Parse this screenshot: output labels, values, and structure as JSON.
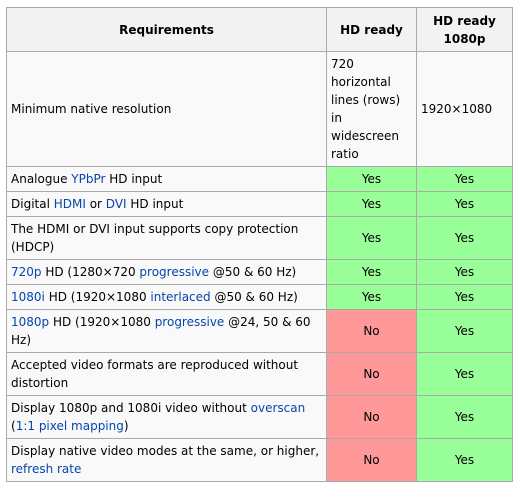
{
  "table": {
    "headers": {
      "requirements": "Requirements",
      "hd_ready": "HD ready",
      "hd_ready_1080p": "HD ready 1080p"
    },
    "rows": [
      {
        "req": [
          {
            "t": "Minimum native resolution"
          }
        ],
        "hd_ready": "720 horizontal lines (rows) in widescreen ratio",
        "hd_ready_1080p": "1920×1080"
      },
      {
        "req": [
          {
            "t": "Analogue "
          },
          {
            "t": "YPbPr",
            "link": true
          },
          {
            "t": " HD input"
          }
        ],
        "hd_ready": "Yes",
        "hd_ready_1080p": "Yes"
      },
      {
        "req": [
          {
            "t": "Digital "
          },
          {
            "t": "HDMI",
            "link": true
          },
          {
            "t": " or "
          },
          {
            "t": "DVI",
            "link": true
          },
          {
            "t": " HD input"
          }
        ],
        "hd_ready": "Yes",
        "hd_ready_1080p": "Yes"
      },
      {
        "req": [
          {
            "t": "The HDMI or DVI input supports copy protection (HDCP)"
          }
        ],
        "hd_ready": "Yes",
        "hd_ready_1080p": "Yes"
      },
      {
        "req": [
          {
            "t": "720p",
            "link": true
          },
          {
            "t": " HD (1280×720 "
          },
          {
            "t": "progressive",
            "link": true
          },
          {
            "t": " @50 & 60 Hz)"
          }
        ],
        "hd_ready": "Yes",
        "hd_ready_1080p": "Yes"
      },
      {
        "req": [
          {
            "t": "1080i",
            "link": true
          },
          {
            "t": " HD (1920×1080 "
          },
          {
            "t": "interlaced",
            "link": true
          },
          {
            "t": " @50 & 60 Hz)"
          }
        ],
        "hd_ready": "Yes",
        "hd_ready_1080p": "Yes"
      },
      {
        "req": [
          {
            "t": "1080p",
            "link": true
          },
          {
            "t": " HD (1920×1080 "
          },
          {
            "t": "progressive",
            "link": true
          },
          {
            "t": " @24, 50 & 60 Hz)"
          }
        ],
        "hd_ready": "No",
        "hd_ready_1080p": "Yes"
      },
      {
        "req": [
          {
            "t": "Accepted video formats are reproduced without distortion"
          }
        ],
        "hd_ready": "No",
        "hd_ready_1080p": "Yes"
      },
      {
        "req": [
          {
            "t": "Display 1080p and 1080i video without "
          },
          {
            "t": "overscan",
            "link": true
          },
          {
            "t": " ("
          },
          {
            "t": "1:1 pixel mapping",
            "link": true
          },
          {
            "t": ")"
          }
        ],
        "hd_ready": "No",
        "hd_ready_1080p": "Yes"
      },
      {
        "req": [
          {
            "t": "Display native video modes at the same, or higher, "
          },
          {
            "t": "refresh rate",
            "link": true
          }
        ],
        "hd_ready": "No",
        "hd_ready_1080p": "Yes"
      }
    ]
  },
  "colors": {
    "yes": "#99ff99",
    "no": "#ff9999",
    "link": "#0645ad",
    "header_bg": "#f2f2f2",
    "cell_bg": "#f9f9f9",
    "border": "#aaaaaa"
  }
}
